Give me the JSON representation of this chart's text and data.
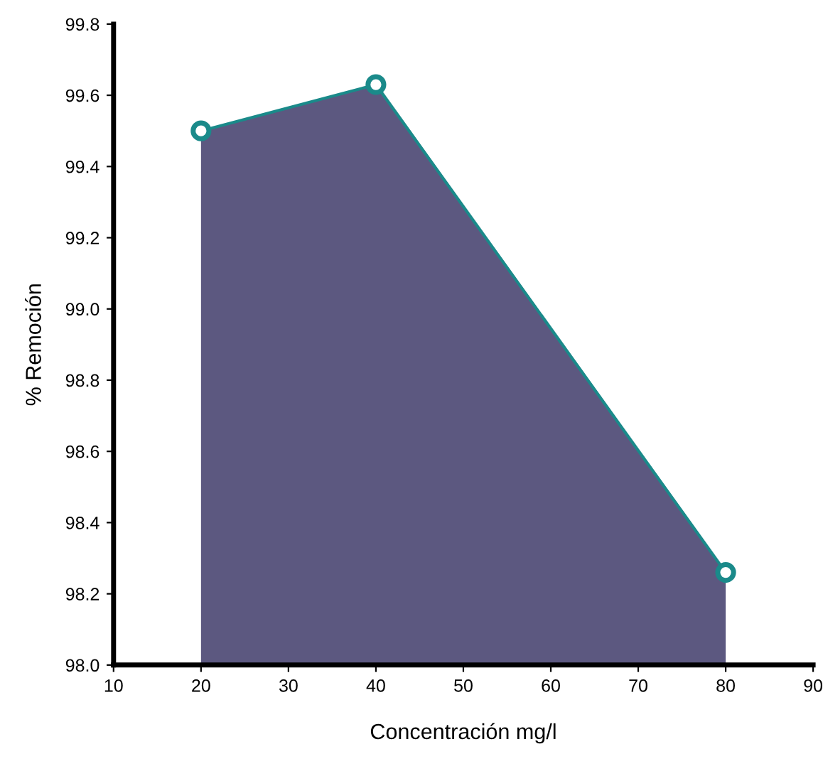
{
  "chart_data": {
    "type": "area",
    "xlabel": "Concentración mg/l",
    "ylabel": "% Remoción",
    "x": [
      20,
      40,
      80
    ],
    "series": [
      {
        "color": "#5c5880",
        "values": [
          99.5,
          99.63,
          98.26
        ]
      }
    ],
    "xlim": [
      10,
      90
    ],
    "xticks": [
      10,
      20,
      30,
      40,
      50,
      60,
      70,
      80,
      90
    ],
    "ylim": [
      98.0,
      99.8
    ],
    "yticks": [
      {
        "value": 98.0,
        "label": "98.0"
      },
      {
        "value": 98.2,
        "label": "98.2"
      },
      {
        "value": 98.4,
        "label": "98.4"
      },
      {
        "value": 98.6,
        "label": "98.6"
      },
      {
        "value": 98.8,
        "label": "98.8"
      },
      {
        "value": 99.0,
        "label": "99.0"
      },
      {
        "value": 99.2,
        "label": "99.2"
      },
      {
        "value": 99.4,
        "label": "99.4"
      },
      {
        "value": 99.6,
        "label": "99.6"
      },
      {
        "value": 99.8,
        "label": "99.8"
      }
    ],
    "marker": "circle",
    "grid": false,
    "legend": false
  }
}
